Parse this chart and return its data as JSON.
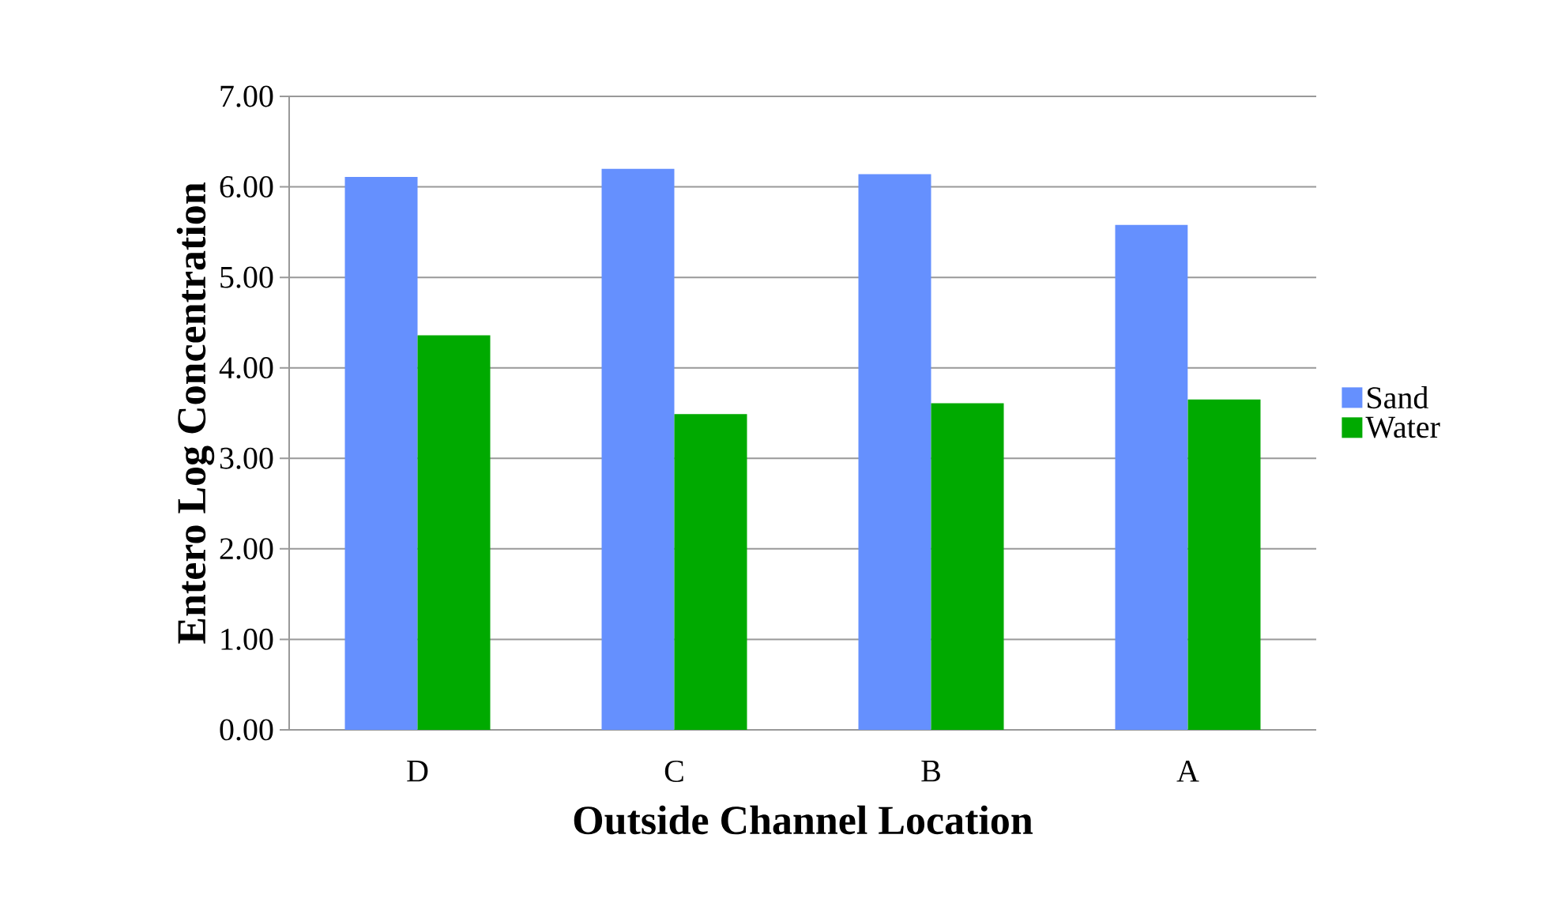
{
  "chart_data": {
    "type": "bar",
    "xlabel": "Outside Channel Location",
    "ylabel": "Entero Log Concentration",
    "categories": [
      "D",
      "C",
      "B",
      "A"
    ],
    "series": [
      {
        "name": "Sand",
        "color": "#6590fe",
        "values": [
          6.11,
          6.2,
          6.14,
          5.58
        ]
      },
      {
        "name": "Water",
        "color": "#00aa00",
        "values": [
          4.36,
          3.49,
          3.61,
          3.65
        ]
      }
    ],
    "ylim": [
      0,
      7
    ],
    "yticks": [
      {
        "value": 0,
        "label": "0.00"
      },
      {
        "value": 1,
        "label": "1.00"
      },
      {
        "value": 2,
        "label": "2.00"
      },
      {
        "value": 3,
        "label": "3.00"
      },
      {
        "value": 4,
        "label": "4.00"
      },
      {
        "value": 5,
        "label": "5.00"
      },
      {
        "value": 6,
        "label": "6.00"
      },
      {
        "value": 7,
        "label": "7.00"
      }
    ],
    "grid": "y",
    "legend": "right"
  }
}
